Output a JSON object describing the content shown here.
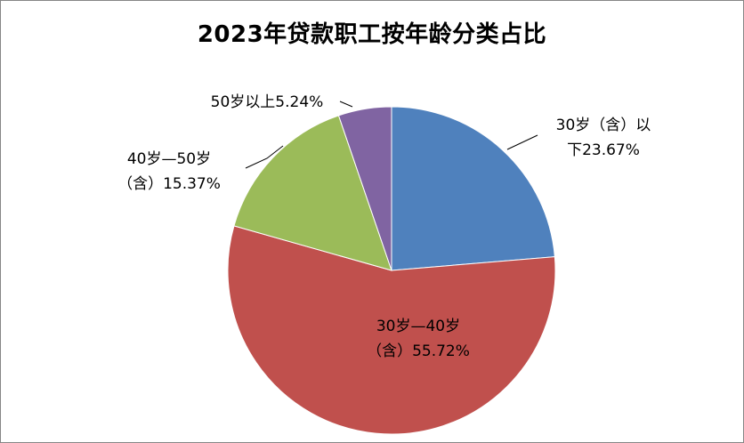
{
  "chart_data": {
    "type": "pie",
    "title": "2023年贷款职工按年龄分类占比",
    "categories": [
      "30岁（含）以下",
      "30岁—40岁（含）",
      "40岁—50岁（含）",
      "50岁以上"
    ],
    "values": [
      23.67,
      55.72,
      15.37,
      5.24
    ],
    "colors": [
      "#4F81BD",
      "#C0504D",
      "#9BBB59",
      "#8064A2"
    ],
    "start": "12-o'clock",
    "direction": "clockwise",
    "labels": [
      {
        "line1": "30岁（含）以",
        "line2": "下23.67%"
      },
      {
        "line1": "30岁—40岁",
        "line2": "（含）55.72%"
      },
      {
        "line1": "40岁—50岁",
        "line2": "（含）15.37%"
      },
      {
        "line1": "50岁以上5.24%",
        "line2": ""
      }
    ]
  }
}
